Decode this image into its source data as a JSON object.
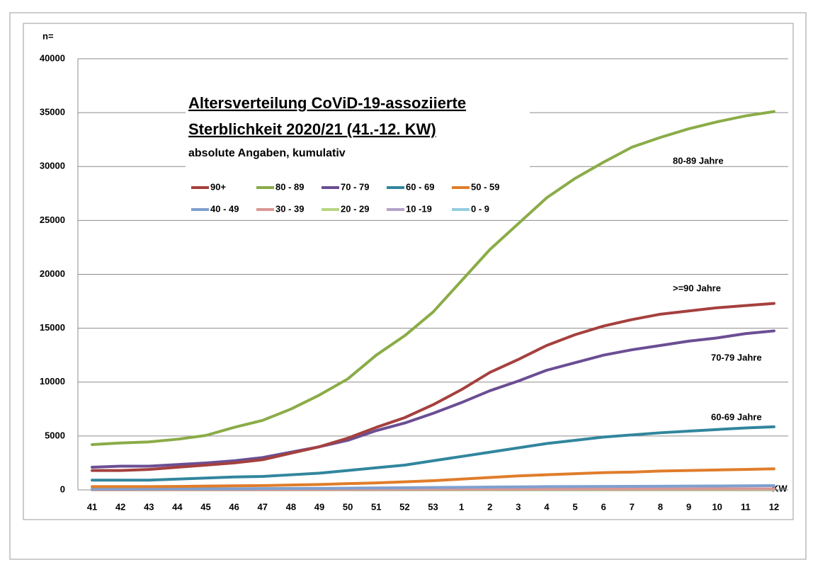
{
  "chart_data": {
    "type": "line",
    "title": [
      "Altersverteilung CoViD-19-assoziierte",
      "Sterblichkeit 2020/21 (41.-12. KW)"
    ],
    "subtitle": "absolute Angaben, kumulativ",
    "y_label": "n=",
    "x_label": "KW",
    "annotations": [
      "80-89 Jahre",
      ">=90 Jahre",
      "70-79 Jahre",
      "60-69 Jahre"
    ],
    "categories": [
      "41",
      "42",
      "43",
      "44",
      "45",
      "46",
      "47",
      "48",
      "49",
      "50",
      "51",
      "52",
      "53",
      "1",
      "2",
      "3",
      "4",
      "5",
      "6",
      "7",
      "8",
      "9",
      "10",
      "11",
      "12"
    ],
    "ylim": [
      0,
      40000
    ],
    "yticks": [
      0,
      5000,
      10000,
      15000,
      20000,
      25000,
      30000,
      35000,
      40000
    ],
    "grid": true,
    "series": [
      {
        "name": "90+",
        "color": "#a5403e",
        "values": [
          1800,
          1800,
          1900,
          2100,
          2300,
          2500,
          2800,
          3400,
          4000,
          4800,
          5800,
          6700,
          7900,
          9300,
          10900,
          12100,
          13400,
          14400,
          15200,
          15800,
          16300,
          16600,
          16900,
          17100,
          17300
        ]
      },
      {
        "name": "80 - 89",
        "color": "#8aac47",
        "values": [
          4200,
          4350,
          4450,
          4700,
          5050,
          5800,
          6450,
          7500,
          8800,
          10300,
          12500,
          14300,
          16500,
          19400,
          22300,
          24700,
          27100,
          28900,
          30400,
          31800,
          32700,
          33500,
          34150,
          34700,
          35100
        ]
      },
      {
        "name": "70 - 79",
        "color": "#6b4e94",
        "values": [
          2100,
          2200,
          2200,
          2350,
          2500,
          2700,
          3000,
          3500,
          4000,
          4600,
          5500,
          6200,
          7100,
          8100,
          9200,
          10100,
          11100,
          11800,
          12500,
          13000,
          13400,
          13800,
          14100,
          14500,
          14750
        ]
      },
      {
        "name": "60 - 69",
        "color": "#31869d",
        "values": [
          900,
          900,
          900,
          1000,
          1100,
          1200,
          1250,
          1400,
          1550,
          1800,
          2050,
          2300,
          2700,
          3100,
          3500,
          3900,
          4300,
          4600,
          4900,
          5100,
          5300,
          5450,
          5600,
          5750,
          5850
        ]
      },
      {
        "name": "50 - 59",
        "color": "#e07d2b",
        "values": [
          300,
          300,
          300,
          320,
          350,
          380,
          400,
          450,
          500,
          580,
          650,
          750,
          850,
          1000,
          1150,
          1300,
          1400,
          1500,
          1600,
          1650,
          1750,
          1800,
          1850,
          1900,
          1950
        ]
      },
      {
        "name": "40 - 49",
        "color": "#7fa0cf",
        "values": [
          80,
          85,
          90,
          95,
          100,
          110,
          120,
          130,
          140,
          160,
          180,
          200,
          220,
          240,
          260,
          280,
          300,
          310,
          320,
          330,
          340,
          350,
          360,
          380,
          390
        ]
      },
      {
        "name": "30 - 39",
        "color": "#d99795",
        "values": [
          20,
          20,
          25,
          25,
          30,
          30,
          35,
          35,
          40,
          45,
          50,
          55,
          60,
          65,
          70,
          75,
          80,
          80,
          85,
          85,
          90,
          90,
          95,
          95,
          100
        ]
      },
      {
        "name": "20 - 29",
        "color": "#b8d582",
        "values": [
          5,
          5,
          5,
          6,
          6,
          7,
          8,
          9,
          10,
          11,
          12,
          14,
          16,
          18,
          20,
          21,
          22,
          23,
          24,
          25,
          26,
          27,
          28,
          29,
          30
        ]
      },
      {
        "name": "10 -19",
        "color": "#b3a3c8",
        "values": [
          2,
          2,
          2,
          2,
          3,
          3,
          3,
          3,
          4,
          4,
          4,
          5,
          5,
          5,
          6,
          6,
          6,
          6,
          7,
          7,
          7,
          7,
          8,
          8,
          8
        ]
      },
      {
        "name": "0 - 9",
        "color": "#93cdde",
        "values": [
          1,
          1,
          1,
          1,
          1,
          1,
          2,
          2,
          2,
          2,
          2,
          2,
          3,
          3,
          3,
          3,
          3,
          4,
          4,
          4,
          4,
          4,
          5,
          5,
          5
        ]
      }
    ]
  }
}
